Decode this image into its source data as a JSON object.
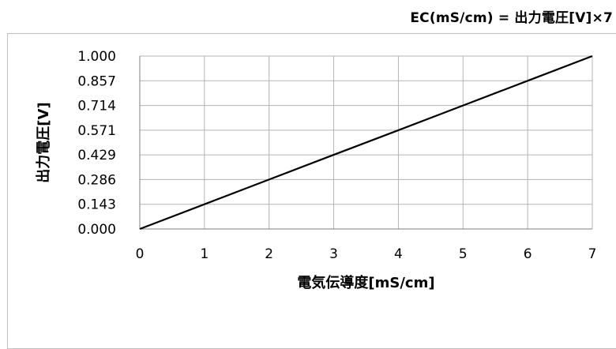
{
  "formula_text": "EC(mS/cm) = 出力電圧[V]×7",
  "chart_data": {
    "type": "line",
    "title": "",
    "xlabel": "電気伝導度[mS/cm]",
    "ylabel": "出力電圧[V]",
    "xlim": [
      0,
      7
    ],
    "ylim": [
      0,
      1
    ],
    "x_ticks": [
      "0",
      "1",
      "2",
      "3",
      "4",
      "5",
      "6",
      "7"
    ],
    "y_ticks": [
      "0.000",
      "0.143",
      "0.286",
      "0.429",
      "0.571",
      "0.714",
      "0.857",
      "1.000"
    ],
    "grid": true,
    "series": [
      {
        "x": [
          0,
          1,
          2,
          3,
          4,
          5,
          6,
          7
        ],
        "y": [
          0.0,
          0.143,
          0.286,
          0.429,
          0.571,
          0.714,
          0.857,
          1.0
        ],
        "color": "#000000"
      }
    ]
  }
}
